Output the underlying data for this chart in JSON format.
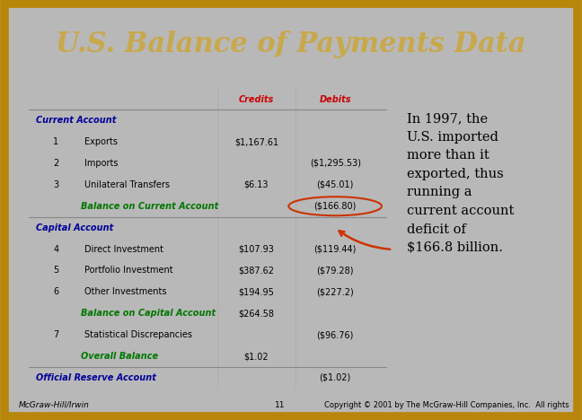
{
  "title": "U.S. Balance of Payments Data",
  "title_color": "#C8A84B",
  "title_bg_color": "#111111",
  "slide_bg_color": "#b8b8b8",
  "table_bg_color": "#f5f0dc",
  "annot_bg_color": "#ffffff",
  "border_color": "#B8860B",
  "table_header_credits": "Credits",
  "table_header_debits": "Debits",
  "table_header_color": "#cc0000",
  "section_color": "#000099",
  "balance_color": "#007700",
  "rows": [
    {
      "num": "",
      "label": "Current Account",
      "credits": "",
      "debits": "",
      "type": "section"
    },
    {
      "num": "1",
      "label": "Exports",
      "credits": "$1,167.61",
      "debits": "",
      "type": "data"
    },
    {
      "num": "2",
      "label": "Imports",
      "credits": "",
      "debits": "($1,295.53)",
      "type": "data"
    },
    {
      "num": "3",
      "label": "Unilateral Transfers",
      "credits": "$6.13",
      "debits": "($45.01)",
      "type": "data"
    },
    {
      "num": "",
      "label": "Balance on Current Account",
      "credits": "",
      "debits": "($166.80)",
      "type": "balance"
    },
    {
      "num": "",
      "label": "Capital Account",
      "credits": "",
      "debits": "",
      "type": "section"
    },
    {
      "num": "4",
      "label": "Direct Investment",
      "credits": "$107.93",
      "debits": "($119.44)",
      "type": "data"
    },
    {
      "num": "5",
      "label": "Portfolio Investment",
      "credits": "$387.62",
      "debits": "($79.28)",
      "type": "data"
    },
    {
      "num": "6",
      "label": "Other Investments",
      "credits": "$194.95",
      "debits": "($227.2)",
      "type": "data"
    },
    {
      "num": "",
      "label": "Balance on Capital Account",
      "credits": "$264.58",
      "debits": "",
      "type": "balance"
    },
    {
      "num": "7",
      "label": "Statistical Discrepancies",
      "credits": "",
      "debits": "($96.76)",
      "type": "data"
    },
    {
      "num": "",
      "label": "Overall Balance",
      "credits": "$1.02",
      "debits": "",
      "type": "overall"
    },
    {
      "num": "",
      "label": "Official Reserve Account",
      "credits": "",
      "debits": "($1.02)",
      "type": "section"
    }
  ],
  "annotation_text": "In 1997, the\nU.S. imported\nmore than it\nexported, thus\nrunning a\ncurrent account\ndeficit of\n$166.8 billion.",
  "annotation_color": "#000000",
  "footer_left": "McGraw-Hill/Irwin",
  "footer_center": "11",
  "footer_right": "Copyright © 2001 by The McGraw-Hill Companies, Inc.  All rights"
}
